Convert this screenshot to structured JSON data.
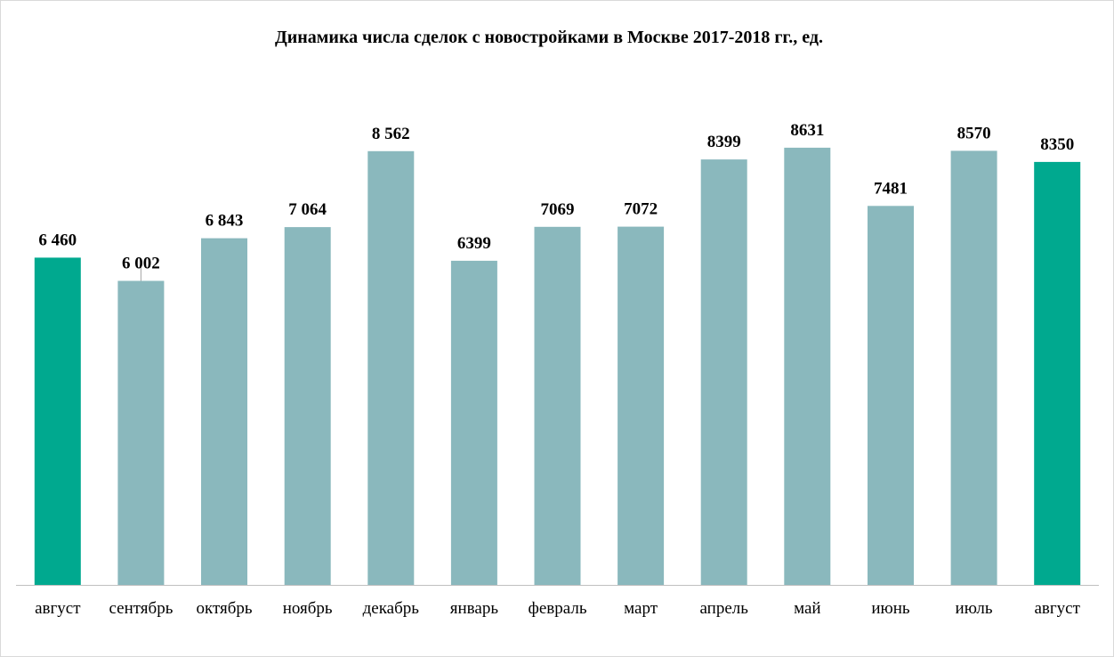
{
  "chart_data": {
    "type": "bar",
    "title": "Динамика числа сделок с новостройками в Москве 2017-2018 гг., ед.",
    "xlabel": "",
    "ylabel": "",
    "ylim": [
      0,
      9000
    ],
    "grid": false,
    "legend": "none",
    "categories": [
      "август",
      "сентябрь",
      "октябрь",
      "ноябрь",
      "декабрь",
      "январь",
      "февраль",
      "март",
      "апрель",
      "май",
      "июнь",
      "июль",
      "август"
    ],
    "values": [
      6460,
      6002,
      6843,
      7064,
      8562,
      6399,
      7069,
      7072,
      8399,
      8631,
      7481,
      8570,
      8350
    ],
    "data_labels": [
      "6 460",
      "6 002",
      "6 843",
      "7 064",
      "8 562",
      "6399",
      "7069",
      "7072",
      "8399",
      "8631",
      "7481",
      "8570",
      "8350"
    ],
    "highlight_indices": [
      0,
      12
    ],
    "colors": {
      "bar": "#8ab8bd",
      "highlight": "#00a98f",
      "axis": "#bfbfbf"
    }
  }
}
